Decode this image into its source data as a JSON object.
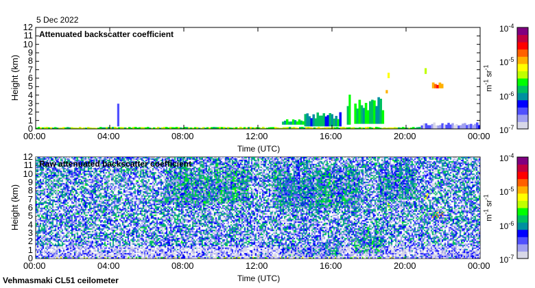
{
  "header": {
    "date": "5 Dec 2022"
  },
  "footer": {
    "station": "Vehmasmaki CL51 ceilometer"
  },
  "colors": {
    "scale": [
      "#d8d8e8",
      "#a0a0f0",
      "#5050ff",
      "#0000ff",
      "#0090a0",
      "#00c060",
      "#00ff00",
      "#c0ff00",
      "#ffff00",
      "#ffb000",
      "#ff6000",
      "#ff0000",
      "#c00040",
      "#800080"
    ]
  },
  "chart_data": [
    {
      "type": "heatmap",
      "title": "Attenuated backscatter coefficient",
      "xlabel": "Time (UTC)",
      "ylabel": "Height (km)",
      "xlim": [
        0,
        24
      ],
      "ylim": [
        0,
        12
      ],
      "xticks": [
        "00:00",
        "04:00",
        "08:00",
        "12:00",
        "16:00",
        "20:00",
        "00:00"
      ],
      "yticks": [
        "0",
        "1",
        "2",
        "3",
        "4",
        "5",
        "6",
        "7",
        "8",
        "9",
        "10",
        "11",
        "12"
      ],
      "features": [
        {
          "t0": 0,
          "t1": 24,
          "h0": 0,
          "h1": 0.25,
          "v": -5.5
        },
        {
          "t0": 4.4,
          "t1": 4.5,
          "h0": 0.3,
          "h1": 4.0,
          "v": -6.7
        },
        {
          "t0": 13.3,
          "t1": 14.5,
          "h0": 0.5,
          "h1": 1.2,
          "v": -5.8
        },
        {
          "t0": 14.5,
          "t1": 16.5,
          "h0": 0.3,
          "h1": 2.0,
          "v": -6.0
        },
        {
          "t0": 16.8,
          "t1": 17.0,
          "h0": 0.5,
          "h1": 4.5,
          "v": -5.6
        },
        {
          "t0": 17.2,
          "t1": 18.8,
          "h0": 0.6,
          "h1": 3.8,
          "v": -5.8
        },
        {
          "t0": 18.9,
          "t1": 19.0,
          "h0": 4.2,
          "h1": 4.8,
          "v": -5.2
        },
        {
          "t0": 19.0,
          "t1": 19.1,
          "h0": 6.0,
          "h1": 6.7,
          "v": -5.3
        },
        {
          "t0": 21.0,
          "t1": 21.1,
          "h0": 6.5,
          "h1": 7.8,
          "v": -5.3
        },
        {
          "t0": 21.4,
          "t1": 22.0,
          "h0": 4.8,
          "h1": 5.5,
          "v": -4.8
        },
        {
          "t0": 20.8,
          "t1": 24,
          "h0": 0.0,
          "h1": 0.8,
          "v": -6.6
        }
      ]
    },
    {
      "type": "heatmap",
      "title": "Raw attenuated backscatter coefficient",
      "xlabel": "Time (UTC)",
      "ylabel": "Height (km)",
      "xlim": [
        0,
        24
      ],
      "ylim": [
        0,
        12
      ],
      "xticks": [
        "00:00",
        "04:00",
        "08:00",
        "12:00",
        "16:00",
        "20:00",
        "00:00"
      ],
      "yticks": [
        "0",
        "1",
        "2",
        "3",
        "4",
        "5",
        "6",
        "7",
        "8",
        "9",
        "10",
        "11",
        "12"
      ],
      "features": [
        {
          "t0": 7.0,
          "t1": 11.5,
          "h0": 6.5,
          "h1": 12,
          "v": -5.8
        },
        {
          "t0": 12.8,
          "t1": 17.5,
          "h0": 6.0,
          "h1": 12,
          "v": -5.9
        },
        {
          "t0": 18.5,
          "t1": 20.5,
          "h0": 7.0,
          "h1": 12,
          "v": -6.0
        },
        {
          "t0": 0,
          "t1": 24,
          "h0": 0,
          "h1": 0.25,
          "v": -5.5
        },
        {
          "t0": 13.3,
          "t1": 16.5,
          "h0": 0.3,
          "h1": 2.0,
          "v": -6.0
        },
        {
          "t0": 17.2,
          "t1": 18.8,
          "h0": 0.6,
          "h1": 3.8,
          "v": -5.8
        },
        {
          "t0": 19.0,
          "t1": 19.1,
          "h0": 6.0,
          "h1": 6.7,
          "v": -5.3
        },
        {
          "t0": 21.0,
          "t1": 21.2,
          "h0": 7.0,
          "h1": 7.8,
          "v": -5.0
        },
        {
          "t0": 21.4,
          "t1": 22.0,
          "h0": 4.8,
          "h1": 5.5,
          "v": -4.8
        },
        {
          "t0": 20.8,
          "t1": 24,
          "h0": 0.0,
          "h1": 0.8,
          "v": -6.6
        }
      ]
    }
  ],
  "colorbar": {
    "label": "m-1 sr-1",
    "unit_main": "m",
    "exp1": "-1",
    "unit_2": " sr",
    "exp2": "-1",
    "ticks": [
      {
        "base": "10",
        "exp": "-4"
      },
      {
        "base": "10",
        "exp": "-5"
      },
      {
        "base": "10",
        "exp": "-6"
      },
      {
        "base": "10",
        "exp": "-7"
      }
    ],
    "range_log10": [
      -7,
      -4
    ]
  }
}
